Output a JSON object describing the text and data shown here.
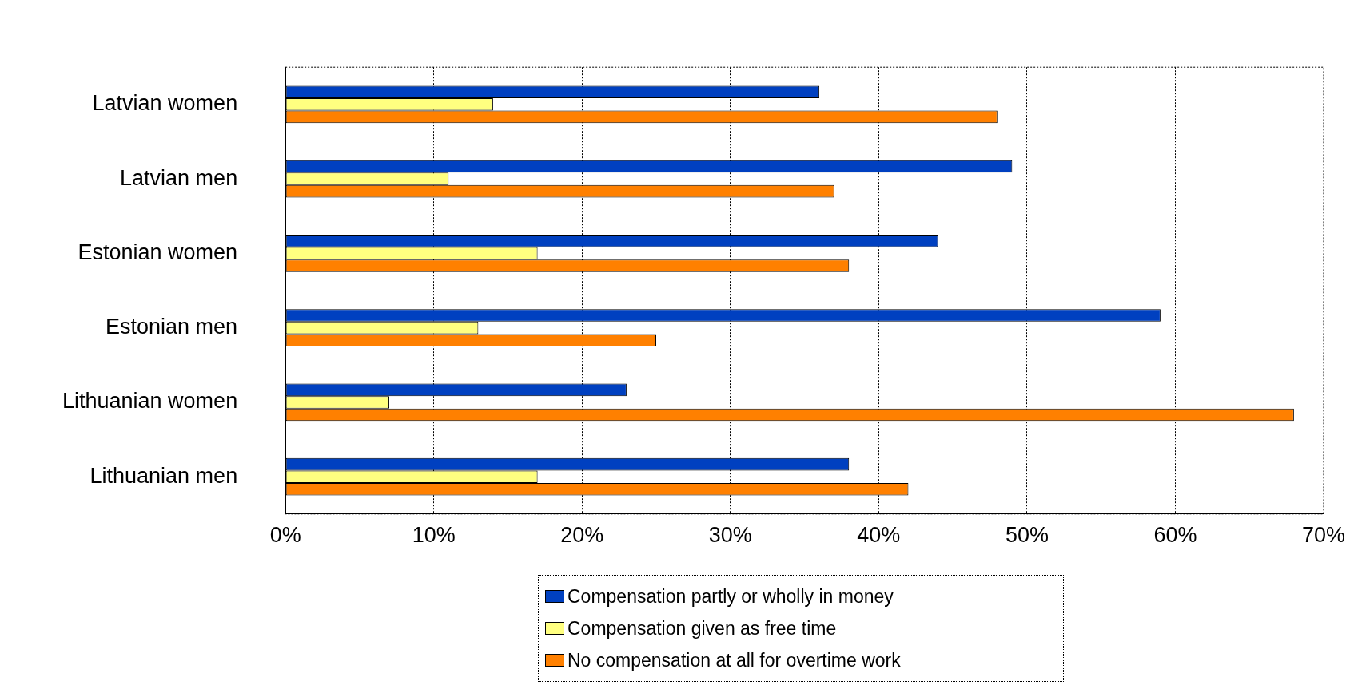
{
  "chart_data": {
    "type": "bar",
    "orientation": "horizontal",
    "categories": [
      "Latvian women",
      "Latvian men",
      "Estonian women",
      "Estonian men",
      "Lithuanian women",
      "Lithuanian men"
    ],
    "series": [
      {
        "name": "Compensation partly or wholly in money",
        "color": "#0040c0",
        "values": [
          36,
          49,
          44,
          59,
          23,
          38
        ]
      },
      {
        "name": "Compensation given as free time",
        "color": "#ffff80",
        "values": [
          14,
          11,
          17,
          13,
          7,
          17
        ]
      },
      {
        "name": "No compensation at all for overtime work",
        "color": "#ff8000",
        "values": [
          48,
          37,
          38,
          25,
          68,
          42
        ]
      }
    ],
    "xlim": [
      0,
      70
    ],
    "xticks": [
      {
        "value": 0,
        "label": "0%"
      },
      {
        "value": 10,
        "label": "10%"
      },
      {
        "value": 20,
        "label": "20%"
      },
      {
        "value": 30,
        "label": "30%"
      },
      {
        "value": 40,
        "label": "40%"
      },
      {
        "value": 50,
        "label": "50%"
      },
      {
        "value": 60,
        "label": "60%"
      },
      {
        "value": 70,
        "label": "70%"
      }
    ],
    "grid": "x",
    "legend": "bottom"
  }
}
